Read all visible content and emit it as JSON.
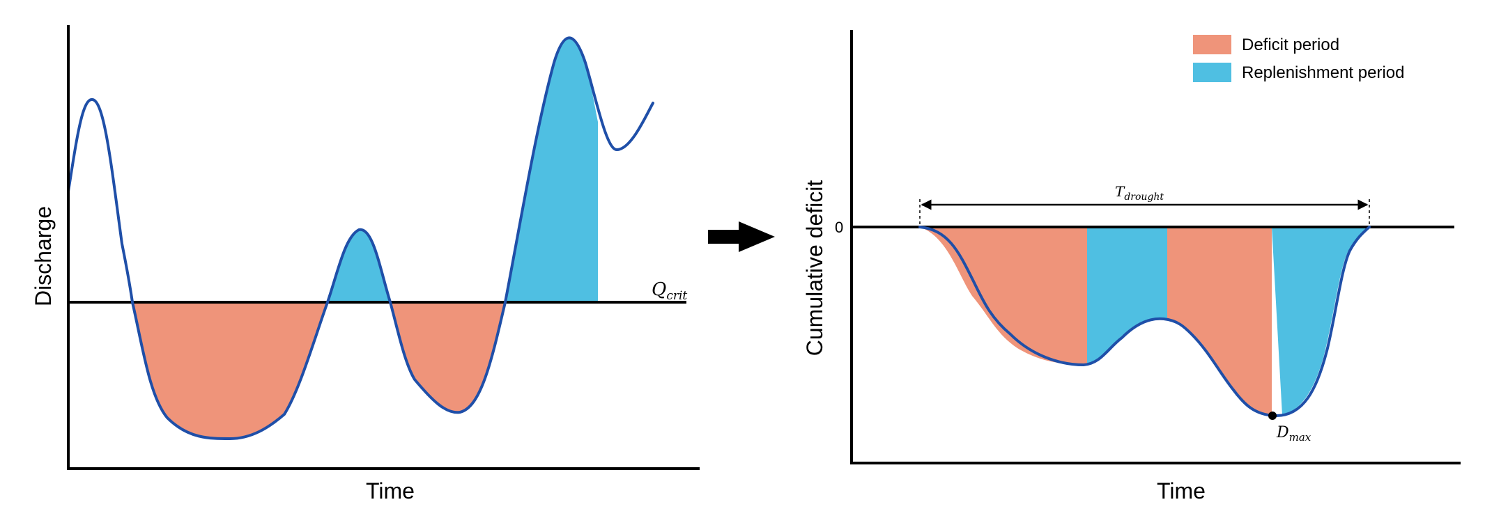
{
  "colors": {
    "deficit": "#ef947a",
    "replenishment": "#4fbfe2",
    "curve": "#1f4fa8",
    "axis": "#000000"
  },
  "left_panel": {
    "ylabel": "Discharge",
    "xlabel": "Time",
    "threshold_label_main": "Q",
    "threshold_label_sub": "crit"
  },
  "arrow": {
    "icon": "right-arrow-icon"
  },
  "right_panel": {
    "ylabel": "Cumulative deficit",
    "xlabel": "Time",
    "zero_label": "0",
    "duration_label_main": "T",
    "duration_label_sub": "drought",
    "max_label_main": "D",
    "max_label_sub": "max"
  },
  "legend": {
    "items": [
      {
        "label": "Deficit period",
        "color": "#ef947a"
      },
      {
        "label": "Replenishment period",
        "color": "#4fbfe2"
      }
    ]
  }
}
